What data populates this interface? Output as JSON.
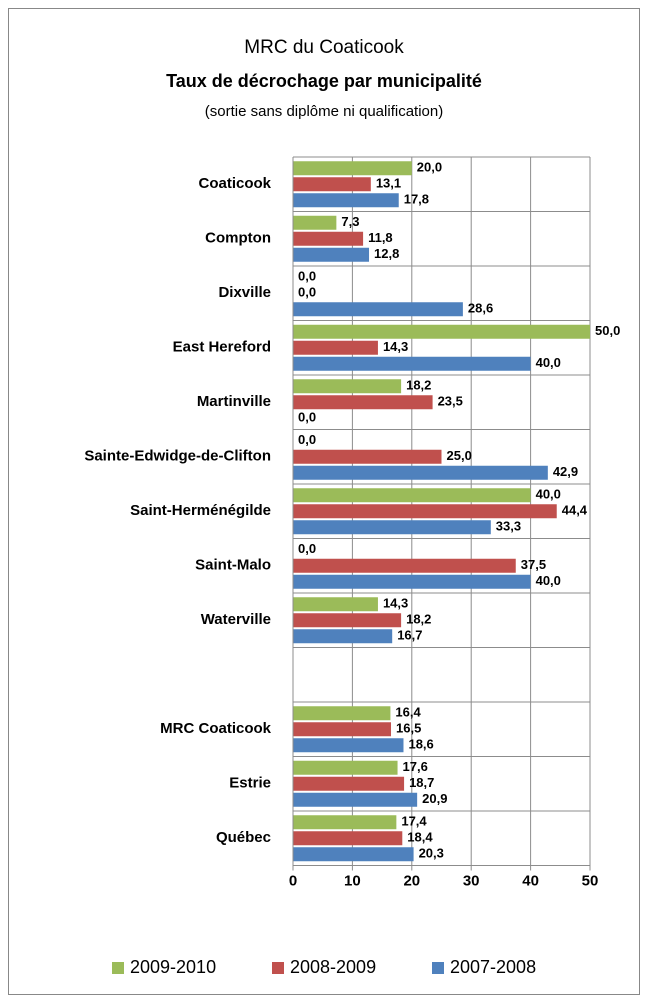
{
  "chart_data": {
    "type": "bar",
    "orientation": "horizontal",
    "title": "MRC du Coaticook",
    "subtitle": "Taux de décrochage par municipalité",
    "note": "(sortie sans diplôme ni qualification)",
    "categories": [
      "Coaticook",
      "Compton",
      "Dixville",
      "East Hereford",
      "Martinville",
      "Sainte-Edwidge-de-Clifton",
      "Saint-Herménégilde",
      "Saint-Malo",
      "Waterville",
      null,
      "MRC Coaticook",
      "Estrie",
      "Québec"
    ],
    "series": [
      {
        "name": "2009-2010",
        "color": "#9bbb59",
        "label_color": "#77933c",
        "values": [
          20.0,
          7.3,
          0,
          50.0,
          18.2,
          0,
          40.0,
          0,
          14.3,
          null,
          16.4,
          17.6,
          17.4
        ],
        "value_labels": [
          "20,0",
          "7,3",
          "0,0",
          "50,0",
          "18,2",
          "0,0",
          "40,0",
          "0,0",
          "14,3",
          null,
          "16,4",
          "17,6",
          "17,4"
        ]
      },
      {
        "name": "2008-2009",
        "color": "#c0504d",
        "label_color": "#c00000",
        "values": [
          13.1,
          11.8,
          0,
          14.3,
          23.5,
          25.0,
          44.4,
          37.5,
          18.2,
          null,
          16.5,
          18.7,
          18.4
        ],
        "value_labels": [
          "13,1",
          "11,8",
          "0,0",
          "14,3",
          "23,5",
          "25,0",
          "44,4",
          "37,5",
          "18,2",
          null,
          "16,5",
          "18,7",
          "18,4"
        ]
      },
      {
        "name": "2007-2008",
        "color": "#4f81bd",
        "label_color": "#376092",
        "values": [
          17.8,
          12.8,
          28.6,
          40.0,
          0,
          42.9,
          33.3,
          40.0,
          16.7,
          null,
          18.6,
          20.9,
          20.3
        ],
        "value_labels": [
          "17,8",
          "12,8",
          "28,6",
          "40,0",
          "0,0",
          "42,9",
          "33,3",
          "40,0",
          "16,7",
          null,
          "18,6",
          "20,9",
          "20,3"
        ]
      }
    ],
    "xlim": [
      0,
      50
    ],
    "xticks": [
      0,
      10,
      20,
      30,
      40,
      50
    ],
    "grid": true,
    "legend": "bottom"
  }
}
